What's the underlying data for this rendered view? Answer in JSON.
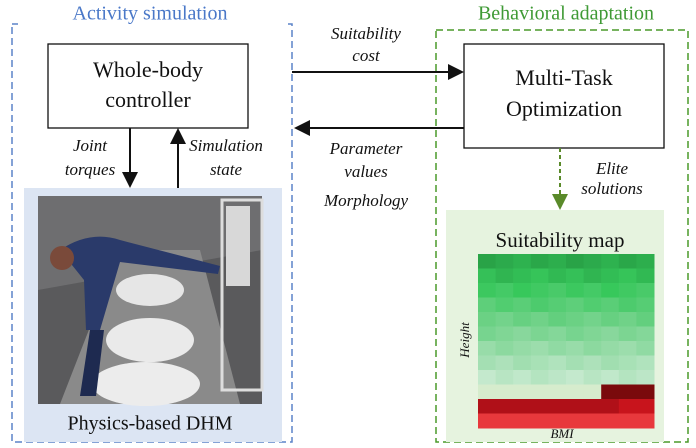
{
  "left_panel": {
    "title": "Activity simulation",
    "controller": [
      "Whole-body",
      "controller"
    ],
    "down_label": [
      "Joint",
      "torques"
    ],
    "up_label": [
      "Simulation",
      "state"
    ],
    "image_caption": "Physics-based DHM"
  },
  "right_panel": {
    "title": "Behavioral adaptation",
    "optimizer": [
      "Multi-Task",
      "Optimization"
    ],
    "down_label": [
      "Elite",
      "solutions"
    ],
    "map_title": "Suitability map",
    "y_axis": "Height",
    "x_axis": "BMI"
  },
  "top_arrow_label": [
    "Suitability",
    "cost"
  ],
  "bottom_arrow_label": [
    "Parameter",
    "values",
    "Morphology"
  ]
}
